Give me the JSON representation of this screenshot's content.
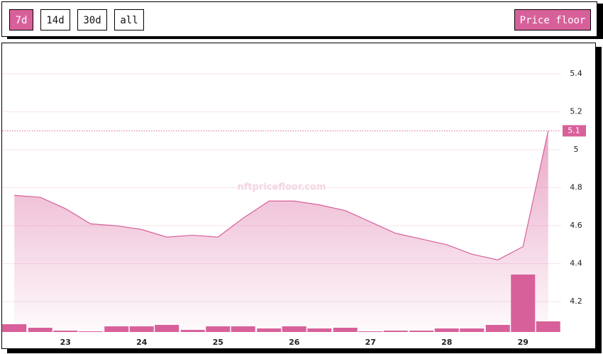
{
  "controls": {
    "ranges": [
      "7d",
      "14d",
      "30d",
      "all"
    ],
    "active_range": 0,
    "metric": "Price floor"
  },
  "chart_data": {
    "type": "area",
    "color": "#d8609a",
    "watermark": "nftpricefloor.com",
    "x": [
      22.33,
      22.67,
      23,
      23.33,
      23.67,
      24,
      24.33,
      24.67,
      25,
      25.33,
      25.67,
      26,
      26.33,
      26.67,
      27,
      27.33,
      27.67,
      28,
      28.33,
      28.67,
      29,
      29.33
    ],
    "values": [
      4.76,
      4.75,
      4.69,
      4.61,
      4.6,
      4.58,
      4.54,
      4.55,
      4.54,
      4.64,
      4.73,
      4.73,
      4.71,
      4.68,
      4.62,
      4.56,
      4.53,
      4.5,
      4.45,
      4.42,
      4.49,
      5.1
    ],
    "volume": [
      11,
      6,
      2,
      1,
      8,
      8,
      10,
      3,
      8,
      8,
      5,
      8,
      5,
      6,
      1,
      2,
      2,
      5,
      5,
      10,
      81,
      15
    ],
    "xlim": [
      22.17,
      29.5
    ],
    "xticks": [
      23,
      24,
      25,
      26,
      27,
      28,
      29
    ],
    "ylim": [
      4.04,
      5.55
    ],
    "yticks": [
      4.2,
      4.4,
      4.6,
      4.8,
      5,
      5.2,
      5.4
    ],
    "grid": true
  }
}
